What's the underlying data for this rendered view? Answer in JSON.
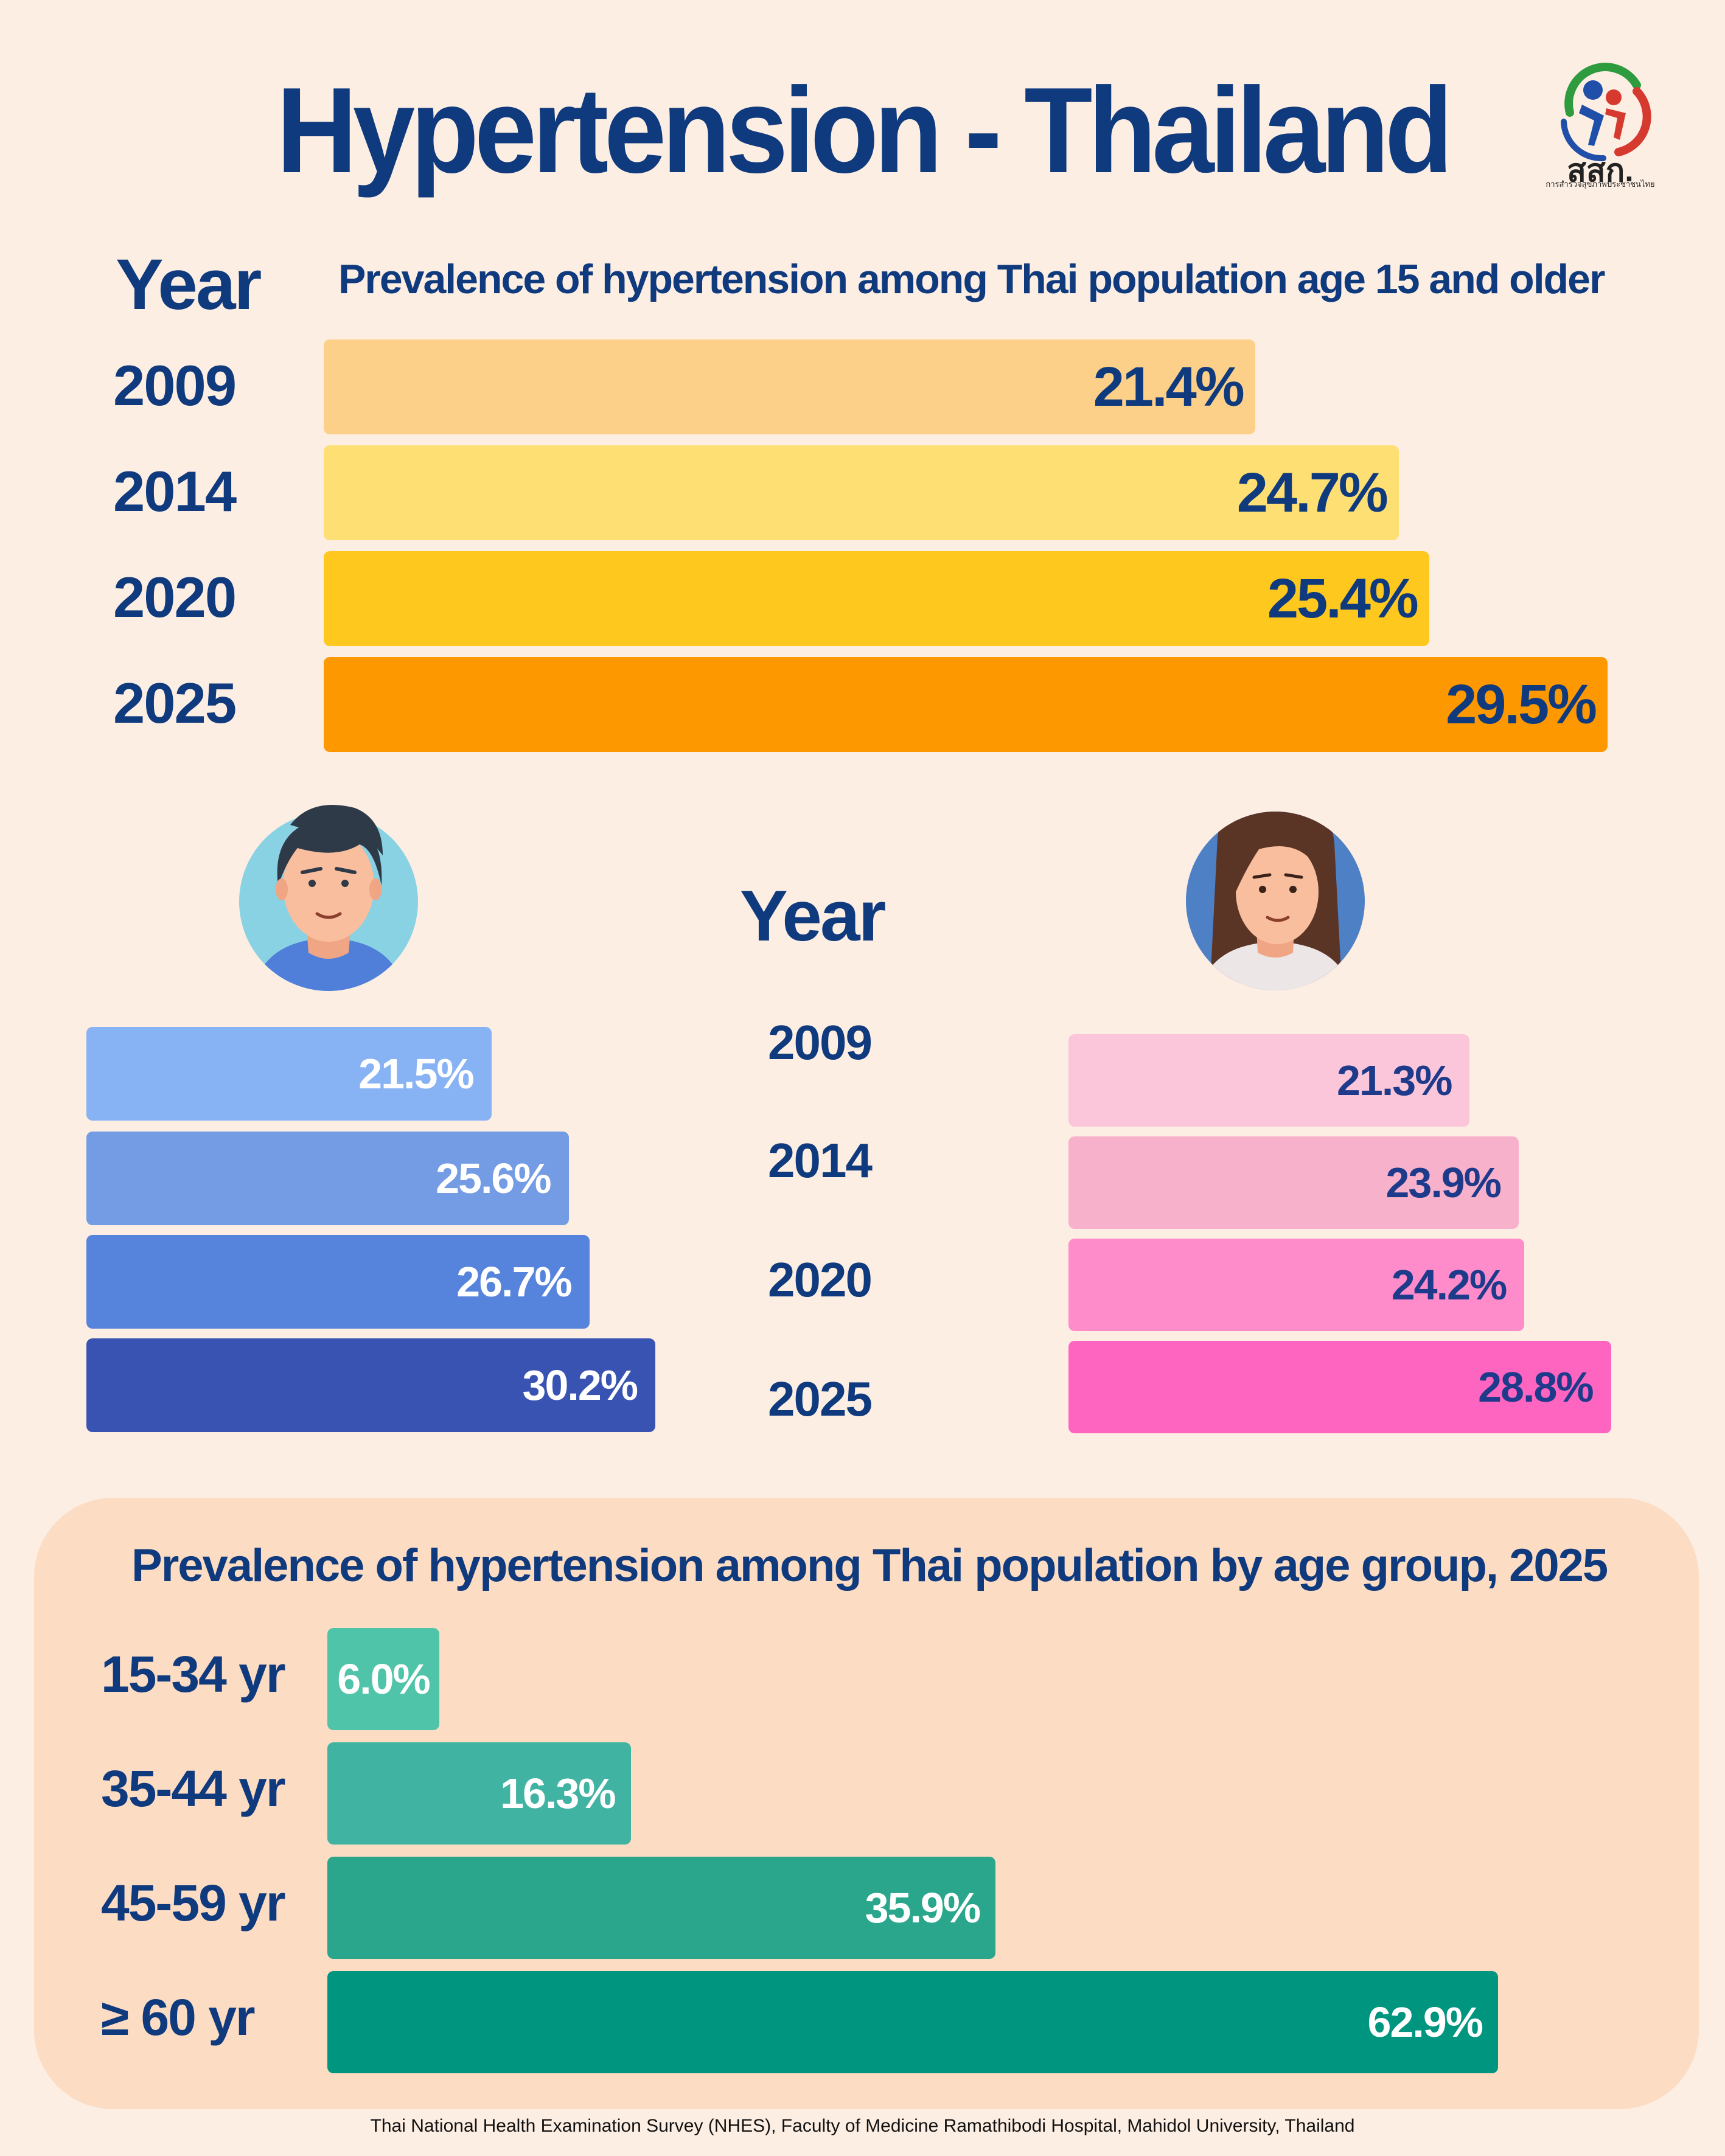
{
  "title": "Hypertension - Thailand",
  "logo": {
    "text": "สสก.",
    "subtitle": "การสำรวจสุขภาพประชาชนไทย"
  },
  "total_section": {
    "year_header": "Year",
    "subtitle": "Prevalence of  hypertension among Thai population age 15 and older"
  },
  "gender_section": {
    "year_header": "Year"
  },
  "age_section": {
    "title": "Prevalence of  hypertension among Thai population by age group, 2025"
  },
  "source": "Thai National Health Examination Survey (NHES), Faculty of Medicine Ramathibodi Hospital, Mahidol University, Thailand",
  "colors": {
    "background": "#FDEEE3",
    "text": "#0F3A7D",
    "total": [
      "#FDD089",
      "#FEDF74",
      "#FEC81E",
      "#FE9800"
    ],
    "male": [
      "#87B3F5",
      "#739CE4",
      "#5683DB",
      "#3853B1"
    ],
    "female": [
      "#FBC6DA",
      "#F8B1CB",
      "#FE8CCB",
      "#FE65C0"
    ],
    "age": [
      "#50C4A9",
      "#41B3A2",
      "#29A68B",
      "#00957F"
    ]
  },
  "chart_data": [
    {
      "type": "bar",
      "orientation": "horizontal",
      "title": "Prevalence of  hypertension among Thai population age 15 and older",
      "categories": [
        "2009",
        "2014",
        "2020",
        "2025"
      ],
      "values": [
        21.4,
        24.7,
        25.4,
        29.5
      ],
      "labels": [
        "21.4%",
        "24.7%",
        "25.4%",
        "29.5%"
      ]
    },
    {
      "type": "bar",
      "orientation": "horizontal",
      "categories": [
        "2009",
        "2014",
        "2020",
        "2025"
      ],
      "series": [
        {
          "values": [
            21.5,
            25.6,
            26.7,
            30.2
          ],
          "labels": [
            "21.5%",
            "25.6%",
            "26.7%",
            "30.2%"
          ]
        },
        {
          "values": [
            21.3,
            23.9,
            24.2,
            28.8
          ],
          "labels": [
            "21.3%",
            "23.9%",
            "24.2%",
            "28.8%"
          ]
        }
      ]
    },
    {
      "type": "bar",
      "orientation": "horizontal",
      "title": "Prevalence of  hypertension among Thai population by age group, 2025",
      "categories": [
        "15-34 yr",
        "35-44 yr",
        "45-59 yr",
        "≥ 60 yr"
      ],
      "values": [
        6.0,
        16.3,
        35.9,
        62.9
      ],
      "labels": [
        "6.0%",
        "16.3%",
        "35.9%",
        "62.9%"
      ]
    }
  ]
}
